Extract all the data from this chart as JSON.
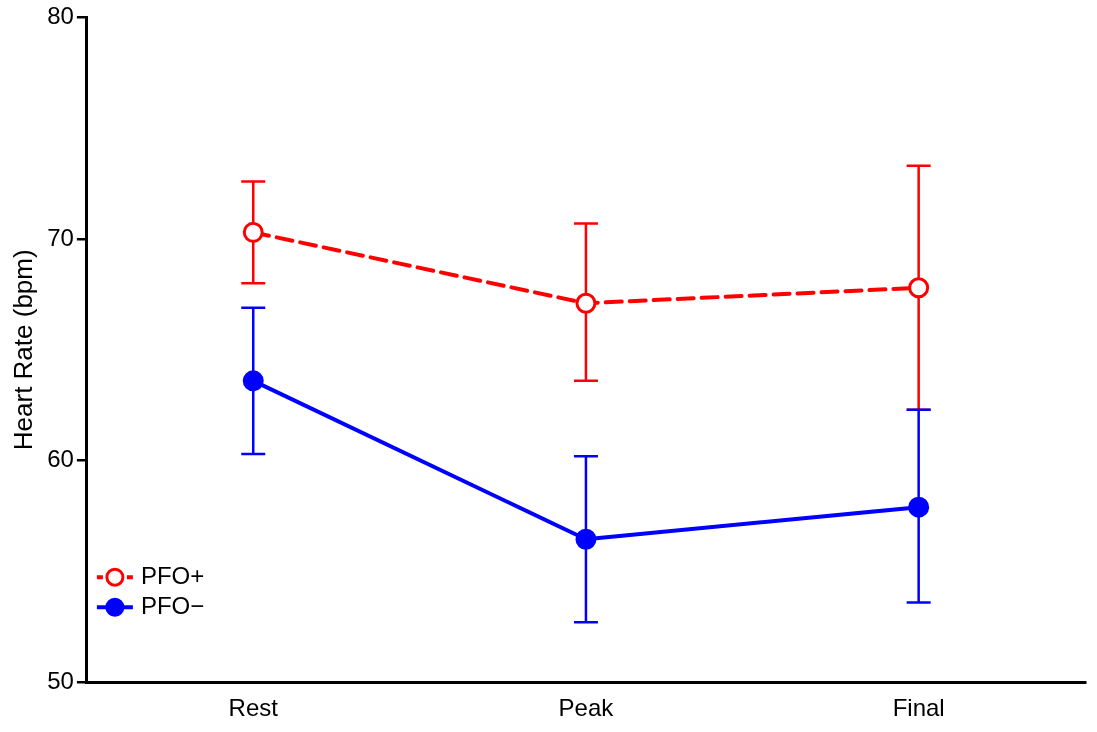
{
  "chart_data": {
    "type": "line",
    "ylabel": "Heart Rate (bpm)",
    "categories": [
      "Rest",
      "Peak",
      "Final"
    ],
    "series": [
      {
        "name": "PFO+",
        "color": "#ff0000",
        "line_style": "dashed",
        "marker": "circle",
        "values": [
          70.3,
          67.1,
          67.8
        ],
        "errors": [
          [
            68.0,
            72.6
          ],
          [
            63.6,
            70.7
          ],
          [
            62.3,
            73.3
          ]
        ]
      },
      {
        "name": "PFO−",
        "color": "#0000ff",
        "line_style": "solid",
        "marker": "circle",
        "values": [
          63.6,
          56.45,
          57.9
        ],
        "errors": [
          [
            60.3,
            66.9
          ],
          [
            52.7,
            60.2
          ],
          [
            53.6,
            62.3
          ]
        ]
      }
    ],
    "ylim": [
      50,
      80
    ],
    "yticks": [
      50,
      60,
      70,
      80
    ],
    "grid": false,
    "legend": "bottom left"
  }
}
